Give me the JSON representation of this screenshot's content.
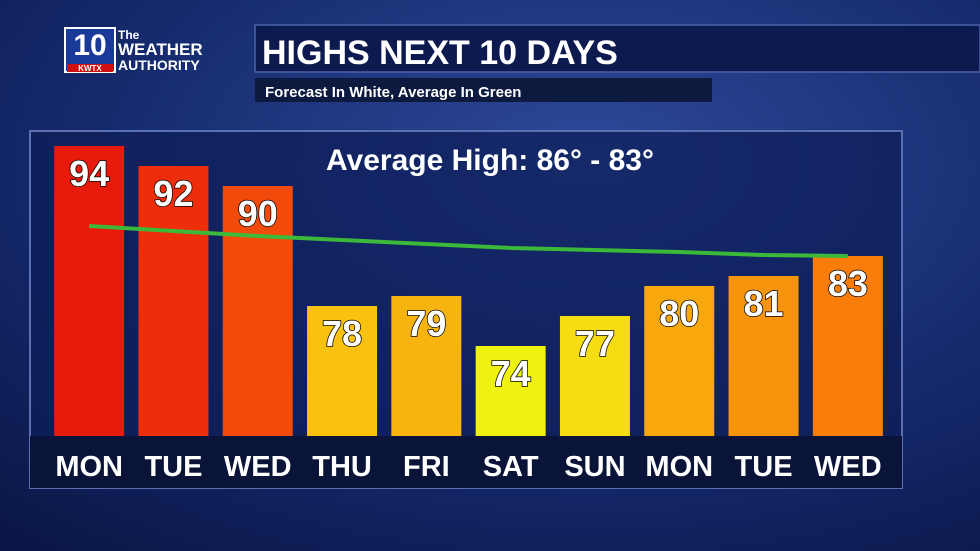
{
  "logo": {
    "number": "10",
    "line1": "The",
    "line2": "WEATHER",
    "line3": "AUTHORITY",
    "station": "KWTX"
  },
  "chart_data": {
    "type": "bar",
    "title": "HIGHS NEXT 10 DAYS",
    "subtitle": "Forecast In White, Average In Green",
    "annotation": "Average High: 86° - 83°",
    "categories": [
      "MON",
      "TUE",
      "WED",
      "THU",
      "FRI",
      "SAT",
      "SUN",
      "MON",
      "TUE",
      "WED"
    ],
    "values": [
      94,
      92,
      90,
      78,
      79,
      74,
      77,
      80,
      81,
      83
    ],
    "colors": [
      "#e81a0c",
      "#ee2e0a",
      "#f24a0a",
      "#f8c20e",
      "#f8b40e",
      "#eef20e",
      "#f6dc12",
      "#f8a80c",
      "#f8940c",
      "#fa7c0a"
    ],
    "average_values": [
      86,
      85.5,
      85,
      84.6,
      84.2,
      83.8,
      83.6,
      83.4,
      83.1,
      83
    ],
    "average_color": "#3cb83a",
    "ylim": [
      65,
      96
    ]
  }
}
